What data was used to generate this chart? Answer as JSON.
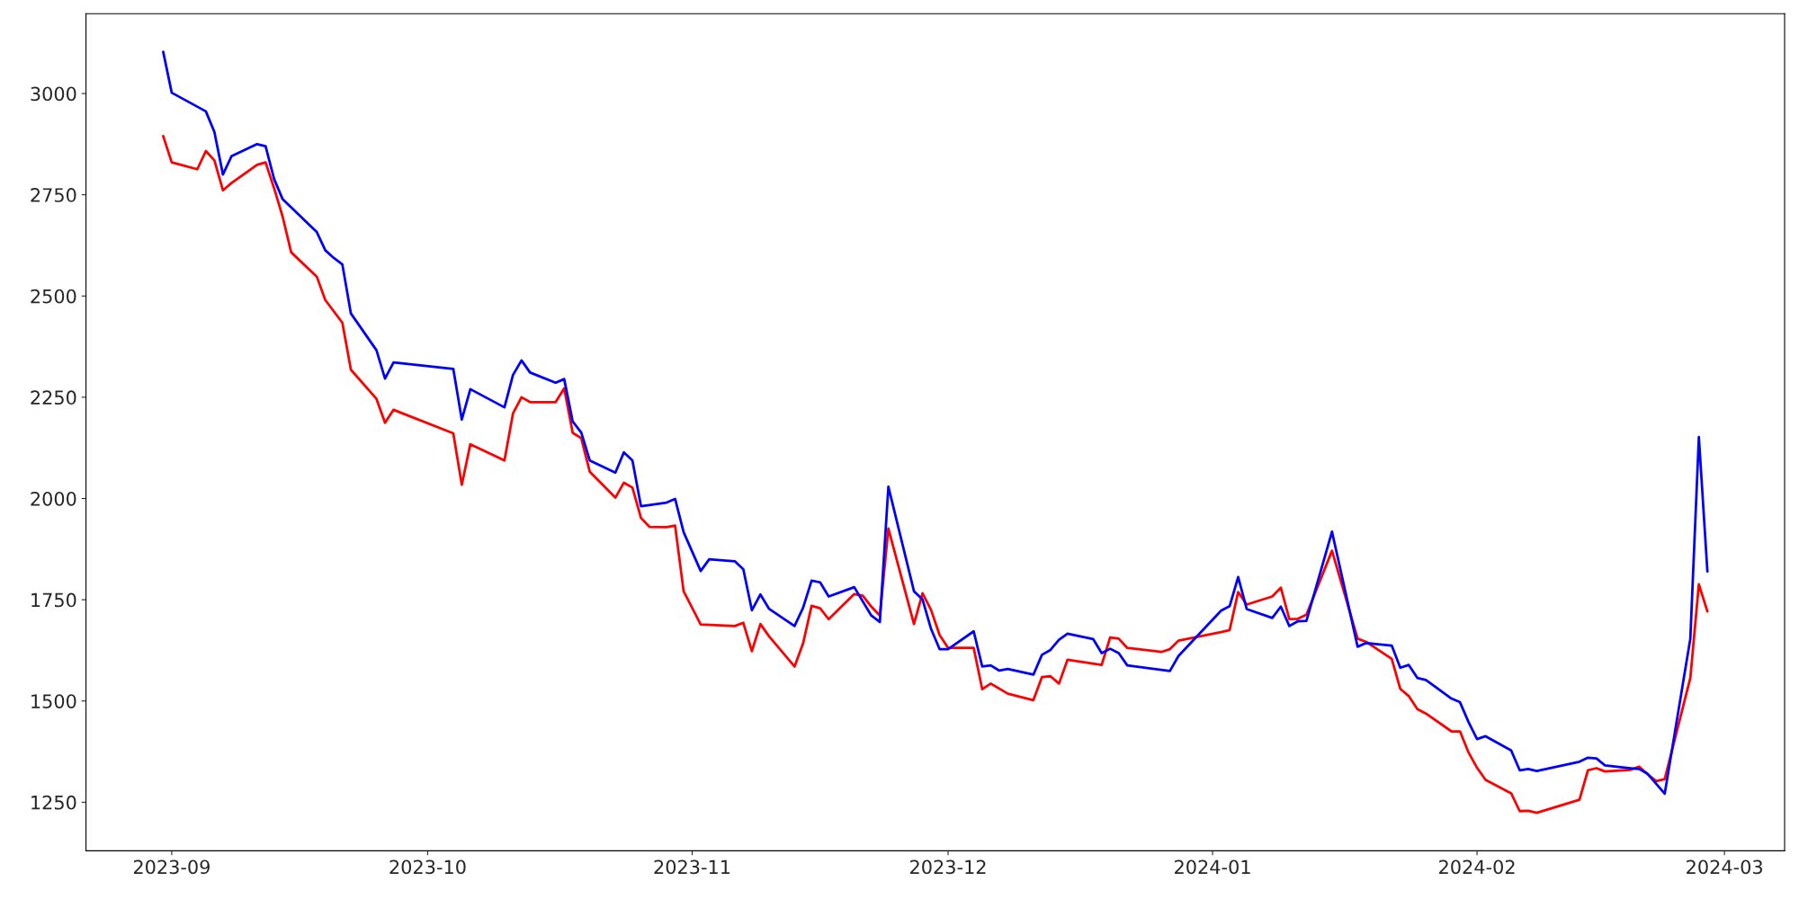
{
  "chart_data": {
    "type": "line",
    "xlim": [
      "2023-08-21T22:48",
      "2024-03-08T01:12"
    ],
    "ylim": [
      1130,
      3197
    ],
    "xticks": [
      {
        "value": "2023-09-01",
        "label": "2023-09"
      },
      {
        "value": "2023-10-01",
        "label": "2023-10"
      },
      {
        "value": "2023-11-01",
        "label": "2023-11"
      },
      {
        "value": "2023-12-01",
        "label": "2023-12"
      },
      {
        "value": "2024-01-01",
        "label": "2024-01"
      },
      {
        "value": "2024-02-01",
        "label": "2024-02"
      },
      {
        "value": "2024-03-01",
        "label": "2024-03"
      }
    ],
    "yticks": [
      1250,
      1500,
      1750,
      2000,
      2250,
      2500,
      2750,
      3000
    ],
    "grid": false,
    "legend": false,
    "line_style": "solid",
    "marker": "none",
    "series": [
      {
        "color": "#ff0000",
        "x": [
          "2023-08-31",
          "2023-09-01",
          "2023-09-04",
          "2023-09-05",
          "2023-09-06",
          "2023-09-07",
          "2023-09-08",
          "2023-09-11",
          "2023-09-12",
          "2023-09-13",
          "2023-09-14",
          "2023-09-15",
          "2023-09-18",
          "2023-09-19",
          "2023-09-21",
          "2023-09-22",
          "2023-09-25",
          "2023-09-26",
          "2023-09-27",
          "2023-10-04",
          "2023-10-05",
          "2023-10-06",
          "2023-10-10",
          "2023-10-11",
          "2023-10-12",
          "2023-10-13",
          "2023-10-16",
          "2023-10-17",
          "2023-10-18",
          "2023-10-19",
          "2023-10-20",
          "2023-10-23",
          "2023-10-24",
          "2023-10-25",
          "2023-10-26",
          "2023-10-27",
          "2023-10-29",
          "2023-10-30",
          "2023-10-31",
          "2023-11-02",
          "2023-11-06",
          "2023-11-07",
          "2023-11-08",
          "2023-11-09",
          "2023-11-10",
          "2023-11-13",
          "2023-11-14",
          "2023-11-15",
          "2023-11-16",
          "2023-11-17",
          "2023-11-20",
          "2023-11-21",
          "2023-11-22",
          "2023-11-23",
          "2023-11-24",
          "2023-11-27",
          "2023-11-28",
          "2023-11-29",
          "2023-11-30",
          "2023-12-01",
          "2023-12-04",
          "2023-12-05",
          "2023-12-06",
          "2023-12-08",
          "2023-12-11",
          "2023-12-12",
          "2023-12-13",
          "2023-12-14",
          "2023-12-15",
          "2023-12-19",
          "2023-12-20",
          "2023-12-21",
          "2023-12-22",
          "2023-12-26",
          "2023-12-27",
          "2023-12-28",
          "2024-01-02",
          "2024-01-03",
          "2024-01-04",
          "2024-01-05",
          "2024-01-08",
          "2024-01-09",
          "2024-01-10",
          "2024-01-11",
          "2024-01-12",
          "2024-01-15",
          "2024-01-18",
          "2024-01-19",
          "2024-01-22",
          "2024-01-23",
          "2024-01-24",
          "2024-01-25",
          "2024-01-26",
          "2024-01-29",
          "2024-01-30",
          "2024-01-31",
          "2024-02-01",
          "2024-02-02",
          "2024-02-05",
          "2024-02-06",
          "2024-02-07",
          "2024-02-08",
          "2024-02-13",
          "2024-02-14",
          "2024-02-15",
          "2024-02-16",
          "2024-02-19",
          "2024-02-20",
          "2024-02-21",
          "2024-02-22",
          "2024-02-23",
          "2024-02-26",
          "2024-02-27",
          "2024-02-28"
        ],
        "values": [
          2895,
          2830,
          2813,
          2858,
          2835,
          2761,
          2779,
          2824,
          2830,
          2766,
          2696,
          2608,
          2548,
          2490,
          2434,
          2318,
          2246,
          2187,
          2219,
          2161,
          2034,
          2134,
          2094,
          2210,
          2250,
          2238,
          2238,
          2272,
          2162,
          2149,
          2066,
          2002,
          2039,
          2027,
          1952,
          1930,
          1929,
          1933,
          1771,
          1689,
          1685,
          1693,
          1623,
          1690,
          1660,
          1585,
          1642,
          1735,
          1729,
          1702,
          1764,
          1760,
          1733,
          1711,
          1926,
          1690,
          1766,
          1725,
          1663,
          1631,
          1631,
          1529,
          1543,
          1518,
          1502,
          1559,
          1561,
          1543,
          1602,
          1589,
          1657,
          1654,
          1631,
          1621,
          1628,
          1649,
          1670,
          1675,
          1769,
          1738,
          1758,
          1780,
          1702,
          1703,
          1713,
          1871,
          1654,
          1646,
          1604,
          1530,
          1512,
          1480,
          1469,
          1425,
          1425,
          1373,
          1335,
          1305,
          1272,
          1228,
          1229,
          1224,
          1256,
          1329,
          1334,
          1326,
          1330,
          1338,
          1319,
          1302,
          1307,
          1557,
          1788,
          1721
        ]
      },
      {
        "color": "#0000ff",
        "x": [
          "2023-08-31",
          "2023-09-01",
          "2023-09-05",
          "2023-09-06",
          "2023-09-07",
          "2023-09-08",
          "2023-09-11",
          "2023-09-12",
          "2023-09-13",
          "2023-09-14",
          "2023-09-18",
          "2023-09-19",
          "2023-09-20",
          "2023-09-21",
          "2023-09-22",
          "2023-09-25",
          "2023-09-26",
          "2023-09-27",
          "2023-10-04",
          "2023-10-05",
          "2023-10-06",
          "2023-10-10",
          "2023-10-11",
          "2023-10-12",
          "2023-10-13",
          "2023-10-16",
          "2023-10-17",
          "2023-10-18",
          "2023-10-19",
          "2023-10-20",
          "2023-10-23",
          "2023-10-24",
          "2023-10-25",
          "2023-10-26",
          "2023-10-29",
          "2023-10-30",
          "2023-10-31",
          "2023-11-02",
          "2023-11-03",
          "2023-11-06",
          "2023-11-07",
          "2023-11-08",
          "2023-11-09",
          "2023-11-10",
          "2023-11-13",
          "2023-11-14",
          "2023-11-15",
          "2023-11-16",
          "2023-11-17",
          "2023-11-20",
          "2023-11-22",
          "2023-11-23",
          "2023-11-24",
          "2023-11-27",
          "2023-11-28",
          "2023-11-29",
          "2023-11-30",
          "2023-12-01",
          "2023-12-04",
          "2023-12-05",
          "2023-12-06",
          "2023-12-07",
          "2023-12-08",
          "2023-12-11",
          "2023-12-12",
          "2023-12-13",
          "2023-12-14",
          "2023-12-15",
          "2023-12-18",
          "2023-12-19",
          "2023-12-20",
          "2023-12-21",
          "2023-12-22",
          "2023-12-27",
          "2023-12-28",
          "2024-01-02",
          "2024-01-03",
          "2024-01-04",
          "2024-01-05",
          "2024-01-08",
          "2024-01-09",
          "2024-01-10",
          "2024-01-11",
          "2024-01-12",
          "2024-01-15",
          "2024-01-18",
          "2024-01-19",
          "2024-01-22",
          "2024-01-23",
          "2024-01-24",
          "2024-01-25",
          "2024-01-26",
          "2024-01-29",
          "2024-01-30",
          "2024-01-31",
          "2024-02-01",
          "2024-02-02",
          "2024-02-05",
          "2024-02-06",
          "2024-02-07",
          "2024-02-08",
          "2024-02-13",
          "2024-02-14",
          "2024-02-15",
          "2024-02-16",
          "2024-02-19",
          "2024-02-20",
          "2024-02-21",
          "2024-02-23",
          "2024-02-26",
          "2024-02-27",
          "2024-02-28"
        ],
        "values": [
          3103,
          3002,
          2956,
          2905,
          2800,
          2845,
          2875,
          2870,
          2789,
          2739,
          2658,
          2613,
          2594,
          2578,
          2457,
          2366,
          2296,
          2336,
          2320,
          2195,
          2270,
          2225,
          2305,
          2341,
          2311,
          2286,
          2295,
          2190,
          2163,
          2094,
          2064,
          2114,
          2094,
          1981,
          1990,
          1999,
          1917,
          1821,
          1850,
          1845,
          1825,
          1724,
          1763,
          1728,
          1685,
          1730,
          1797,
          1793,
          1758,
          1781,
          1711,
          1695,
          2029,
          1771,
          1751,
          1678,
          1628,
          1628,
          1672,
          1585,
          1588,
          1575,
          1579,
          1565,
          1614,
          1626,
          1651,
          1666,
          1653,
          1618,
          1629,
          1618,
          1588,
          1574,
          1611,
          1723,
          1734,
          1806,
          1727,
          1705,
          1733,
          1685,
          1697,
          1698,
          1918,
          1634,
          1643,
          1637,
          1582,
          1589,
          1557,
          1552,
          1506,
          1497,
          1448,
          1406,
          1413,
          1378,
          1329,
          1332,
          1327,
          1350,
          1360,
          1358,
          1341,
          1334,
          1332,
          1320,
          1271,
          1654,
          2152,
          1820
        ]
      }
    ]
  }
}
